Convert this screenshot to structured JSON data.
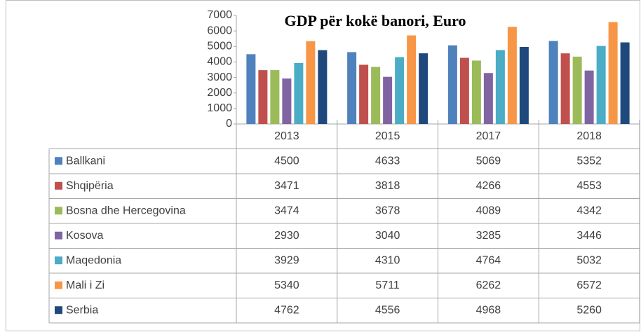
{
  "chart_data": {
    "type": "bar",
    "title": "GDP për kokë banori, Euro",
    "categories": [
      "2013",
      "2015",
      "2017",
      "2018"
    ],
    "series": [
      {
        "name": "Ballkani",
        "color": "#4f81bd",
        "values": [
          4500,
          4633,
          5069,
          5352
        ]
      },
      {
        "name": "Shqipëria",
        "color": "#c0504d",
        "values": [
          3471,
          3818,
          4266,
          4553
        ]
      },
      {
        "name": "Bosna dhe Hercegovina",
        "color": "#9bbb59",
        "values": [
          3474,
          3678,
          4089,
          4342
        ]
      },
      {
        "name": "Kosova",
        "color": "#8064a2",
        "values": [
          2930,
          3040,
          3285,
          3446
        ]
      },
      {
        "name": "Maqedonia",
        "color": "#4bacc6",
        "values": [
          3929,
          4310,
          4764,
          5032
        ]
      },
      {
        "name": "Mali i Zi",
        "color": "#f79646",
        "values": [
          5340,
          5711,
          6262,
          6572
        ]
      },
      {
        "name": "Serbia",
        "color": "#1f497d",
        "values": [
          4762,
          4556,
          4968,
          5260
        ]
      }
    ],
    "ylim": [
      0,
      7000
    ],
    "yticks": [
      0,
      1000,
      2000,
      3000,
      4000,
      5000,
      6000,
      7000
    ],
    "grid": false
  }
}
